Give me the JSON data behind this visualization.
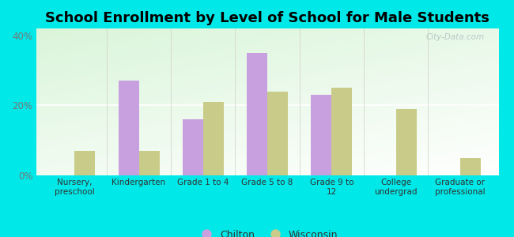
{
  "title": "School Enrollment by Level of School for Male Students",
  "categories": [
    "Nursery,\npreschool",
    "Kindergarten",
    "Grade 1 to 4",
    "Grade 5 to 8",
    "Grade 9 to\n12",
    "College\nundergrad",
    "Graduate or\nprofessional"
  ],
  "chilton": [
    0,
    27,
    16,
    35,
    23,
    0,
    0
  ],
  "wisconsin": [
    7,
    7,
    21,
    24,
    25,
    19,
    5
  ],
  "chilton_color": "#c8a0e0",
  "wisconsin_color": "#c8cc88",
  "bg_color": "#00e8e8",
  "ylim": [
    0,
    42
  ],
  "yticks": [
    0,
    20,
    40
  ],
  "ytick_labels": [
    "0%",
    "20%",
    "40%"
  ],
  "legend_labels": [
    "Chilton",
    "Wisconsin"
  ],
  "watermark": "City-Data.com",
  "title_fontsize": 13,
  "bar_width": 0.32
}
